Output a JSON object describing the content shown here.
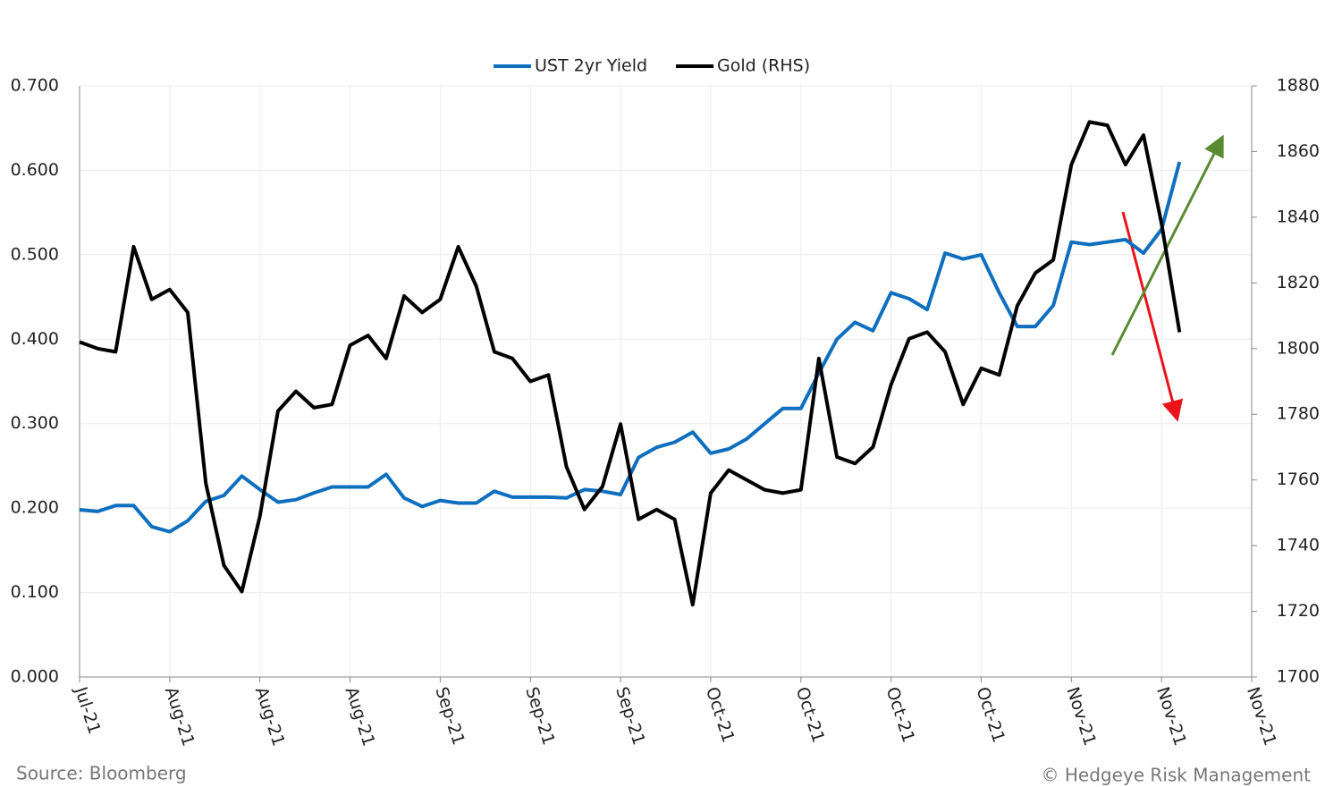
{
  "chart_data": {
    "type": "line",
    "legend_position": "top",
    "grid": true,
    "categories": [
      "Jul-21",
      null,
      null,
      null,
      null,
      "Aug-21",
      null,
      null,
      null,
      null,
      "Aug-21",
      null,
      null,
      null,
      null,
      "Aug-21",
      null,
      null,
      null,
      null,
      "Sep-21",
      null,
      null,
      null,
      null,
      "Sep-21",
      null,
      null,
      null,
      null,
      "Sep-21",
      null,
      null,
      null,
      null,
      "Oct-21",
      null,
      null,
      null,
      null,
      "Oct-21",
      null,
      null,
      null,
      null,
      "Oct-21",
      null,
      null,
      null,
      null,
      "Oct-21",
      null,
      null,
      null,
      null,
      "Nov-21",
      null,
      null,
      null,
      null,
      "Nov-21",
      null,
      null,
      null,
      null,
      "Nov-21"
    ],
    "series": [
      {
        "name": "UST 2yr Yield",
        "color": "#0f6fbf",
        "axis": "y",
        "values": [
          0.198,
          0.196,
          0.203,
          0.203,
          0.178,
          0.172,
          0.185,
          0.208,
          0.215,
          0.238,
          0.222,
          0.207,
          0.21,
          0.218,
          0.225,
          0.225,
          0.225,
          0.24,
          0.212,
          0.202,
          0.209,
          0.206,
          0.206,
          0.22,
          0.213,
          0.213,
          0.213,
          0.212,
          0.222,
          0.22,
          0.216,
          0.26,
          0.272,
          0.278,
          0.29,
          0.265,
          0.27,
          0.282,
          0.3,
          0.318,
          0.318,
          0.36,
          0.4,
          0.42,
          0.41,
          0.455,
          0.448,
          0.435,
          0.502,
          0.495,
          0.5,
          0.455,
          0.415,
          0.415,
          0.44,
          0.515,
          0.512,
          0.515,
          0.518,
          0.502,
          0.53,
          0.61,
          null,
          null,
          null,
          null
        ]
      },
      {
        "name": "Gold (RHS)",
        "color": "#000000",
        "axis": "y2",
        "values": [
          1802,
          1800,
          1799,
          1831,
          1815,
          1818,
          1811,
          1759,
          1734,
          1726,
          1749,
          1781,
          1787,
          1782,
          1783,
          1801,
          1804,
          1797,
          1816,
          1811,
          1815,
          1831,
          1819,
          1799,
          1797,
          1790,
          1792,
          1764,
          1751,
          1758,
          1777,
          1748,
          1751,
          1748,
          1722,
          1756,
          1763,
          1760,
          1757,
          1756,
          1757,
          1797,
          1767,
          1765,
          1770,
          1789,
          1803,
          1805,
          1799,
          1783,
          1794,
          1792,
          1813,
          1823,
          1827,
          1856,
          1869,
          1868,
          1856,
          1865,
          1838,
          1805,
          null,
          null,
          null,
          null
        ]
      }
    ],
    "ylim": [
      0,
      0.7
    ],
    "yticks": [
      {
        "value": 0,
        "label": "0.000"
      },
      {
        "value": 0.1,
        "label": "0.100"
      },
      {
        "value": 0.2,
        "label": "0.200"
      },
      {
        "value": 0.3,
        "label": "0.300"
      },
      {
        "value": 0.4,
        "label": "0.400"
      },
      {
        "value": 0.5,
        "label": "0.500"
      },
      {
        "value": 0.6,
        "label": "0.600"
      },
      {
        "value": 0.7,
        "label": "0.700"
      }
    ],
    "y2lim": [
      1700,
      1880
    ],
    "y2ticks": [
      1700,
      1720,
      1740,
      1760,
      1780,
      1800,
      1820,
      1840,
      1860,
      1880
    ],
    "source": "Source: Bloomberg",
    "credit": "© Hedgeye Risk Management"
  }
}
